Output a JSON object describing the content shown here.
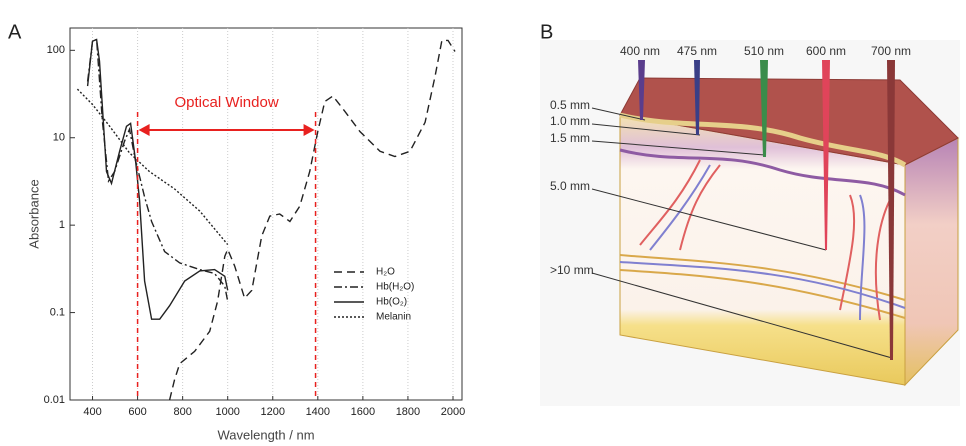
{
  "panel_labels": [
    "A",
    "B"
  ],
  "chart_data": {
    "type": "line",
    "xlabel": "Wavelength / nm",
    "ylabel": "Absorbance",
    "xlim": [
      300,
      2040
    ],
    "ylim": [
      0.01,
      180
    ],
    "xticks": [
      400,
      600,
      800,
      1000,
      1200,
      1400,
      1600,
      1800,
      2000
    ],
    "yticks": [
      0.01,
      0.1,
      1,
      10,
      100
    ],
    "log_y": true,
    "grid": "x",
    "legend": "lower right",
    "series": [
      {
        "name": "H₂O",
        "color": "#222222",
        "style": "dashed",
        "x": [
          742,
          764,
          787,
          853,
          920,
          955,
          987,
          1000,
          1031,
          1075,
          1107,
          1151,
          1187,
          1231,
          1276,
          1320,
          1364,
          1400,
          1431,
          1467,
          1520,
          1587,
          1676,
          1742,
          1809,
          1876,
          1920,
          1951,
          1978,
          2009
        ],
        "values": [
          0.01,
          0.017,
          0.026,
          0.036,
          0.061,
          0.135,
          0.44,
          0.53,
          0.34,
          0.146,
          0.18,
          0.75,
          1.27,
          1.34,
          1.1,
          1.65,
          4.1,
          11.8,
          26,
          30,
          20,
          11.8,
          7,
          6.1,
          7,
          15,
          50,
          130,
          130,
          97
        ]
      },
      {
        "name": "Hb(H₂O)",
        "color": "#222222",
        "style": "dashdot",
        "x": [
          378,
          400,
          418,
          444,
          471,
          498,
          542,
          564,
          591,
          609,
          631,
          662,
          720,
          787,
          876,
          942,
          987,
          1000
        ],
        "values": [
          44,
          127,
          133,
          15.5,
          3.2,
          4.1,
          9.1,
          12.5,
          5.4,
          3.6,
          2.1,
          1.1,
          0.5,
          0.37,
          0.31,
          0.28,
          0.2,
          0.135
        ]
      },
      {
        "name": "Hb(O₂)",
        "color": "#222222",
        "style": "solid",
        "x": [
          378,
          400,
          418,
          431,
          462,
          484,
          520,
          551,
          569,
          591,
          609,
          631,
          662,
          698,
          742,
          809,
          876,
          942,
          987,
          1000
        ],
        "values": [
          39,
          127,
          133,
          75,
          4.1,
          3.0,
          7,
          13.5,
          14.6,
          5.4,
          1.9,
          0.23,
          0.084,
          0.084,
          0.12,
          0.23,
          0.3,
          0.31,
          0.26,
          0.18
        ]
      },
      {
        "name": "Melanin",
        "color": "#222222",
        "style": "dotted",
        "x": [
          333,
          400,
          476,
          564,
          653,
          764,
          876,
          1000
        ],
        "values": [
          36,
          24,
          13.5,
          6.7,
          4.1,
          2.6,
          1.45,
          0.6
        ]
      }
    ],
    "annotation": {
      "text": "Optical Window",
      "x": [
        600,
        1390
      ],
      "color": "#e8211f"
    }
  },
  "diagram": {
    "wavelengths": [
      "400 nm",
      "475 nm",
      "510 nm",
      "600 nm",
      "700 nm"
    ],
    "depths": [
      "0.5 mm",
      "1.0 mm",
      "1.5 mm",
      "5.0 mm",
      ">10 mm"
    ]
  }
}
